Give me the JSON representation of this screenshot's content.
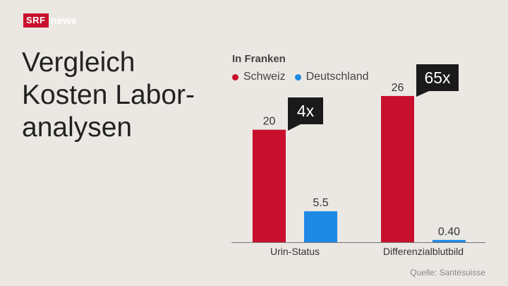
{
  "brand": {
    "box": "SRF",
    "word": "news"
  },
  "title": {
    "lines": [
      "Vergleich",
      "Kosten Labor-",
      "analysen"
    ]
  },
  "unit_label": "In Franken",
  "source": "Quelle: Santésuisse",
  "colors": {
    "schweiz": "#c8102e",
    "deutschland": "#1e88e5",
    "callout": "#1a1a1a"
  },
  "chart_data": {
    "type": "bar",
    "categories": [
      "Urin-Status",
      "Differenzialblutbild"
    ],
    "series": [
      {
        "name": "Schweiz",
        "values": [
          20,
          26
        ],
        "labels": [
          "20",
          "26"
        ]
      },
      {
        "name": "Deutschland",
        "values": [
          5.5,
          0.4
        ],
        "labels": [
          "5.5",
          "0.40"
        ]
      }
    ],
    "ratios": [
      "4x",
      "65x"
    ],
    "ylabel": "In Franken",
    "ylim": [
      0,
      28
    ],
    "legend": "top",
    "grid": false
  }
}
